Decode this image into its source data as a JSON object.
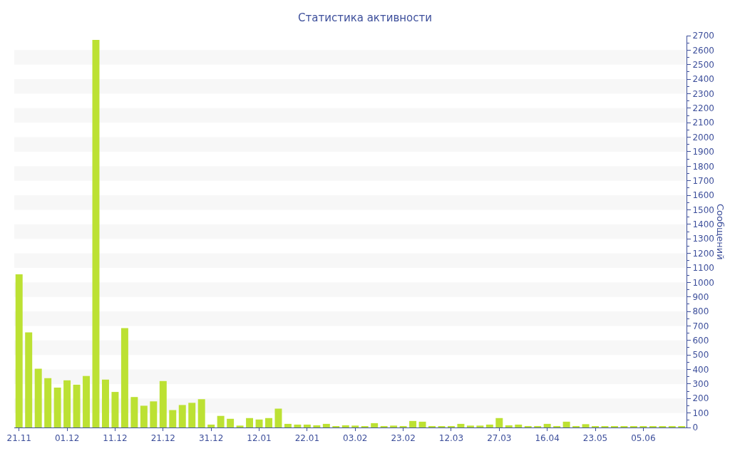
{
  "chart_data": {
    "type": "bar",
    "title": "Статистика активности",
    "ylabel": "Сообщений",
    "categories": [
      "21.11",
      null,
      null,
      null,
      null,
      "01.12",
      null,
      null,
      null,
      null,
      "11.12",
      null,
      null,
      null,
      null,
      "21.12",
      null,
      null,
      null,
      null,
      "31.12",
      null,
      null,
      null,
      null,
      "12.01",
      null,
      null,
      null,
      null,
      "22.01",
      null,
      null,
      null,
      null,
      "03.02",
      null,
      null,
      null,
      null,
      "23.02",
      null,
      null,
      null,
      null,
      "12.03",
      null,
      null,
      null,
      null,
      "27.03",
      null,
      null,
      null,
      null,
      "16.04",
      null,
      null,
      null,
      null,
      "23.05",
      null,
      null,
      null,
      null,
      "05.06",
      null,
      null,
      null,
      null
    ],
    "values": [
      1055,
      655,
      405,
      340,
      275,
      325,
      295,
      355,
      2670,
      330,
      245,
      685,
      210,
      150,
      180,
      320,
      120,
      155,
      170,
      195,
      20,
      80,
      60,
      13,
      65,
      55,
      65,
      130,
      25,
      20,
      20,
      15,
      25,
      8,
      15,
      13,
      8,
      30,
      10,
      13,
      10,
      45,
      40,
      10,
      7,
      10,
      25,
      13,
      13,
      20,
      65,
      15,
      20,
      10,
      10,
      25,
      10,
      40,
      10,
      23,
      8,
      8,
      8,
      8,
      8,
      5,
      5,
      5,
      10,
      5
    ],
    "color": "#bce133",
    "ylim": [
      0,
      2700
    ],
    "yticks": [
      0,
      {
        "value": 50,
        "label": null
      },
      100,
      {
        "value": 150,
        "label": null
      },
      200,
      {
        "value": 250,
        "label": null
      },
      300,
      {
        "value": 350,
        "label": null
      },
      400,
      {
        "value": 450,
        "label": null
      },
      500,
      {
        "value": 550,
        "label": null
      },
      600,
      {
        "value": 650,
        "label": null
      },
      700,
      {
        "value": 750,
        "label": null
      },
      800,
      {
        "value": 850,
        "label": null
      },
      900,
      {
        "value": 950,
        "label": null
      },
      1000,
      {
        "value": 1050,
        "label": null
      },
      1100,
      {
        "value": 1150,
        "label": null
      },
      1200,
      {
        "value": 1250,
        "label": null
      },
      1300,
      {
        "value": 1350,
        "label": null
      },
      1400,
      {
        "value": 1450,
        "label": null
      },
      1500,
      {
        "value": 1550,
        "label": null
      },
      1600,
      {
        "value": 1650,
        "label": null
      },
      1700,
      {
        "value": 1750,
        "label": null
      },
      1800,
      {
        "value": 1850,
        "label": null
      },
      1900,
      {
        "value": 1950,
        "label": null
      },
      2000,
      {
        "value": 2050,
        "label": null
      },
      2100,
      {
        "value": 2150,
        "label": null
      },
      2200,
      {
        "value": 2250,
        "label": null
      },
      2300,
      {
        "value": 2350,
        "label": null
      },
      2400,
      {
        "value": 2450,
        "label": null
      },
      2500,
      {
        "value": 2550,
        "label": null
      },
      2600,
      {
        "value": 2650,
        "label": null
      },
      2700
    ],
    "bands": [
      {
        "axis": "y",
        "from": 100,
        "to": 200,
        "color": "#f7f7f7"
      },
      {
        "axis": "y",
        "from": 300,
        "to": 400,
        "color": "#f7f7f7"
      },
      {
        "axis": "y",
        "from": 500,
        "to": 600,
        "color": "#f7f7f7"
      },
      {
        "axis": "y",
        "from": 700,
        "to": 800,
        "color": "#f7f7f7"
      },
      {
        "axis": "y",
        "from": 900,
        "to": 1000,
        "color": "#f7f7f7"
      },
      {
        "axis": "y",
        "from": 1100,
        "to": 1200,
        "color": "#f7f7f7"
      },
      {
        "axis": "y",
        "from": 1300,
        "to": 1400,
        "color": "#f7f7f7"
      },
      {
        "axis": "y",
        "from": 1500,
        "to": 1600,
        "color": "#f7f7f7"
      },
      {
        "axis": "y",
        "from": 1700,
        "to": 1800,
        "color": "#f7f7f7"
      },
      {
        "axis": "y",
        "from": 1900,
        "to": 2000,
        "color": "#f7f7f7"
      },
      {
        "axis": "y",
        "from": 2100,
        "to": 2200,
        "color": "#f7f7f7"
      },
      {
        "axis": "y",
        "from": 2300,
        "to": 2400,
        "color": "#f7f7f7"
      },
      {
        "axis": "y",
        "from": 2500,
        "to": 2600,
        "color": "#f7f7f7"
      }
    ]
  }
}
